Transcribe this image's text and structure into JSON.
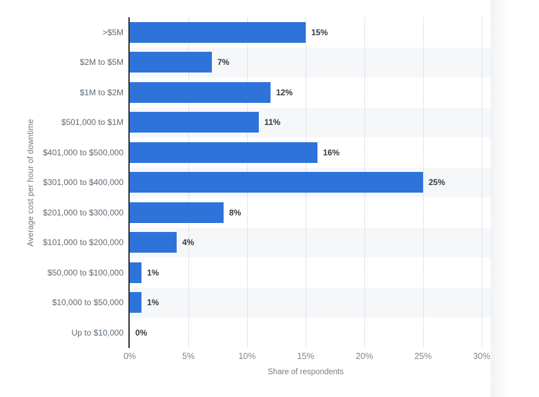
{
  "chart_data": {
    "type": "bar",
    "orientation": "horizontal",
    "title": "",
    "categories": [
      ">$5M",
      "$2M to $5M",
      "$1M to $2M",
      "$501,000 to $1M",
      "$401,000 to $500,000",
      "$301,000 to $400,000",
      "$201,000 to $300,000",
      "$101,000 to $200,000",
      "$50,000 to $100,000",
      "$10,000 to $50,000",
      "Up to $10,000"
    ],
    "values": [
      15,
      7,
      12,
      11,
      16,
      25,
      8,
      4,
      1,
      1,
      0
    ],
    "value_labels": [
      "15%",
      "7%",
      "12%",
      "11%",
      "16%",
      "25%",
      "8%",
      "4%",
      "1%",
      "1%",
      "0%"
    ],
    "xlabel": "Share of respondents",
    "ylabel": "Average cost per hour of downtime",
    "xlim": [
      0,
      30
    ],
    "x_ticks": [
      "0%",
      "5%",
      "10%",
      "15%",
      "20%",
      "25%",
      "30%"
    ],
    "grid": "vertical-dotted",
    "legend": "none",
    "bar_color": "#2e73da",
    "stripe_color": "#f6f7f9"
  },
  "toolbar": {
    "citation_glyph": "”",
    "buttons": [
      {
        "name": "favorite-button",
        "icon": "star-icon"
      },
      {
        "name": "notification-button",
        "icon": "bell-icon"
      },
      {
        "name": "settings-button",
        "icon": "gear-icon"
      },
      {
        "name": "share-button",
        "icon": "share-icon"
      },
      {
        "name": "citation-button",
        "icon": "quote-icon"
      },
      {
        "name": "print-button",
        "icon": "printer-icon"
      }
    ]
  }
}
